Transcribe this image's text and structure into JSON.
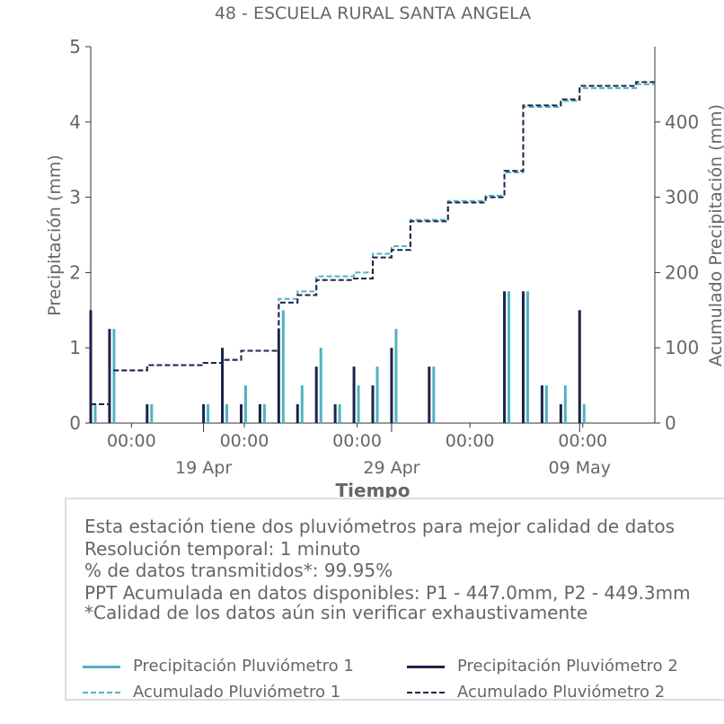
{
  "chart_data": {
    "type": "bar+line",
    "title": "48 - ESCUELA RURAL SANTA ANGELA",
    "xlabel": "Tiempo",
    "ylabel_left": "Precipitación (mm)",
    "ylabel_right": "Acumulado Precipitación (mm)",
    "ylim_left": [
      0,
      5
    ],
    "ylim_right": [
      0,
      500
    ],
    "yticks_left": [
      0,
      1,
      2,
      3,
      4,
      5
    ],
    "yticks_right": [
      0,
      100,
      200,
      300,
      400
    ],
    "x_range": [
      "2025-04-13",
      "2025-05-13"
    ],
    "x_minor_tick_labels": [
      "00:00",
      "00:00",
      "00:00",
      "00:00",
      "00:00"
    ],
    "x_major_tick_labels": [
      "19 Apr",
      "29 Apr",
      "09 May"
    ],
    "grid": false,
    "colors": {
      "p1": "#4fb3c3",
      "p2": "#1c2348"
    },
    "series": [
      {
        "name": "Precipitación Pluviómetro 1",
        "kind": "bar",
        "x": [
          "2025-04-13",
          "2025-04-14",
          "2025-04-16",
          "2025-04-19",
          "2025-04-20",
          "2025-04-21",
          "2025-04-22",
          "2025-04-23",
          "2025-04-24",
          "2025-04-25",
          "2025-04-26",
          "2025-04-27",
          "2025-04-28",
          "2025-04-29",
          "2025-05-01",
          "2025-05-05",
          "2025-05-06",
          "2025-05-07",
          "2025-05-08",
          "2025-05-09"
        ],
        "y": [
          0.25,
          1.25,
          0.25,
          0.25,
          0.25,
          0.5,
          0.25,
          1.5,
          0.5,
          1.0,
          0.25,
          0.5,
          0.75,
          1.25,
          0.75,
          1.75,
          1.75,
          0.5,
          0.5,
          0.25
        ]
      },
      {
        "name": "Precipitación Pluviómetro 2",
        "kind": "bar",
        "x": [
          "2025-04-13",
          "2025-04-14",
          "2025-04-16",
          "2025-04-19",
          "2025-04-20",
          "2025-04-21",
          "2025-04-22",
          "2025-04-23",
          "2025-04-24",
          "2025-04-25",
          "2025-04-26",
          "2025-04-27",
          "2025-04-28",
          "2025-04-29",
          "2025-05-01",
          "2025-05-05",
          "2025-05-06",
          "2025-05-07",
          "2025-05-08",
          "2025-05-09"
        ],
        "y": [
          1.5,
          1.25,
          0.25,
          0.25,
          1.0,
          0.25,
          0.25,
          1.25,
          0.25,
          0.75,
          0.25,
          0.75,
          0.5,
          1.0,
          0.75,
          1.75,
          1.75,
          0.5,
          0.25,
          1.5
        ]
      },
      {
        "name": "Acumulado Pluviómetro 1",
        "kind": "line",
        "axis": "right",
        "x": [
          "2025-04-13",
          "2025-04-14",
          "2025-04-16",
          "2025-04-19",
          "2025-04-20",
          "2025-04-21",
          "2025-04-23",
          "2025-04-24",
          "2025-04-25",
          "2025-04-27",
          "2025-04-28",
          "2025-04-29",
          "2025-04-30",
          "2025-05-02",
          "2025-05-04",
          "2025-05-05",
          "2025-05-06",
          "2025-05-08",
          "2025-05-09",
          "2025-05-12"
        ],
        "y": [
          25,
          70,
          77,
          80,
          84,
          96,
          165,
          175,
          195,
          200,
          225,
          235,
          270,
          295,
          302,
          333,
          420,
          428,
          445,
          450
        ]
      },
      {
        "name": "Acumulado Pluviómetro 2",
        "kind": "line",
        "axis": "right",
        "x": [
          "2025-04-13",
          "2025-04-14",
          "2025-04-16",
          "2025-04-19",
          "2025-04-20",
          "2025-04-21",
          "2025-04-23",
          "2025-04-24",
          "2025-04-25",
          "2025-04-27",
          "2025-04-28",
          "2025-04-29",
          "2025-04-30",
          "2025-05-02",
          "2025-05-04",
          "2025-05-05",
          "2025-05-06",
          "2025-05-08",
          "2025-05-09",
          "2025-05-12"
        ],
        "y": [
          25,
          70,
          77,
          80,
          84,
          96,
          160,
          170,
          190,
          192,
          220,
          230,
          268,
          293,
          300,
          335,
          422,
          430,
          448,
          453
        ]
      }
    ],
    "legend": [
      {
        "label": "Precipitación Pluviómetro 1",
        "series": 0,
        "style": "solid"
      },
      {
        "label": "Precipitación Pluviómetro 2",
        "series": 1,
        "style": "solid"
      },
      {
        "label": "Acumulado Pluviómetro 1",
        "series": 2,
        "style": "dashed"
      },
      {
        "label": "Acumulado Pluviómetro 2",
        "series": 3,
        "style": "dashed"
      }
    ],
    "legend_placement": "bottom"
  },
  "info": {
    "lines": [
      "Esta estación tiene dos pluviómetros para mejor calidad de datos",
      "Resolución temporal: 1 minuto",
      "% de datos transmitidos*: 99.95%",
      "PPT Acumulada en datos disponibles: P1 - 447.0mm, P2 - 449.3mm",
      "*Calidad de los datos aún sin verificar exhaustivamente"
    ]
  }
}
